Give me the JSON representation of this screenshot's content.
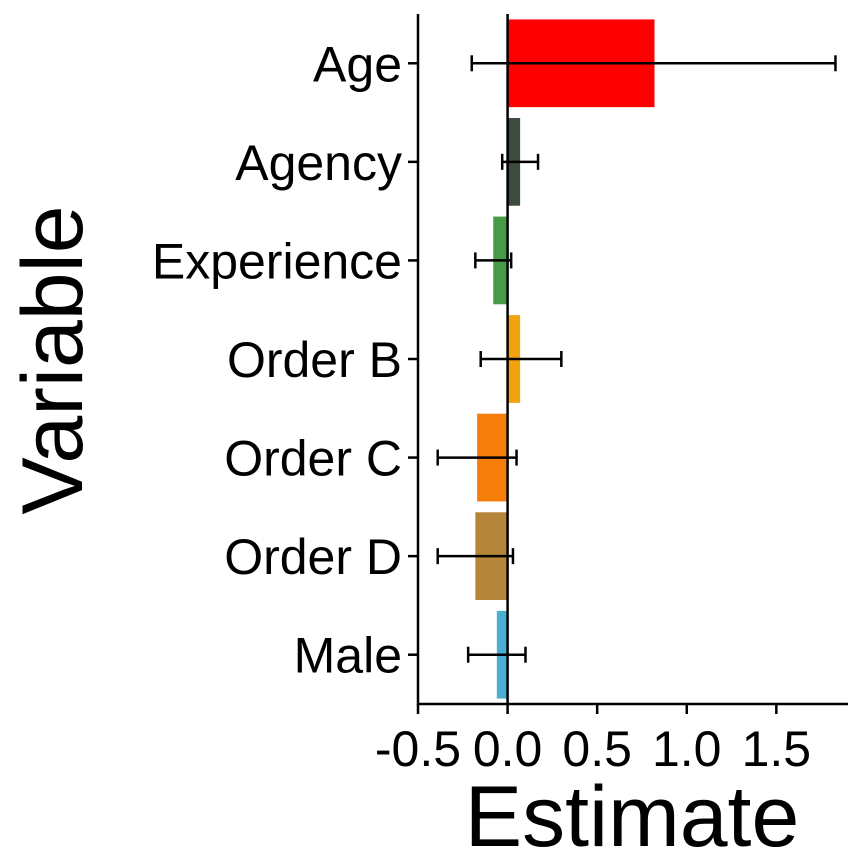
{
  "chart_data": {
    "type": "bar",
    "orientation": "horizontal",
    "xlabel": "Estimate",
    "ylabel": "Variable",
    "xlim": [
      -0.5,
      1.9
    ],
    "xticks": [
      -0.5,
      0.0,
      0.5,
      1.0,
      1.5
    ],
    "xtick_labels": [
      "-0.5",
      "0.0",
      "0.5",
      "1.0",
      "1.5"
    ],
    "grid": false,
    "legend": "none",
    "categories": [
      "Age",
      "Agency",
      "Experience",
      "Order B",
      "Order C",
      "Order D",
      "Male"
    ],
    "values": [
      0.82,
      0.07,
      -0.08,
      0.07,
      -0.17,
      -0.18,
      -0.06
    ],
    "error_low": [
      -0.2,
      -0.03,
      -0.18,
      -0.15,
      -0.39,
      -0.39,
      -0.22
    ],
    "error_high": [
      1.83,
      0.17,
      0.02,
      0.3,
      0.05,
      0.03,
      0.1
    ],
    "colors": [
      "#ff0000",
      "#3c4c3c",
      "#479b47",
      "#f2a20e",
      "#f57e0b",
      "#b5853a",
      "#4aaed0"
    ]
  }
}
